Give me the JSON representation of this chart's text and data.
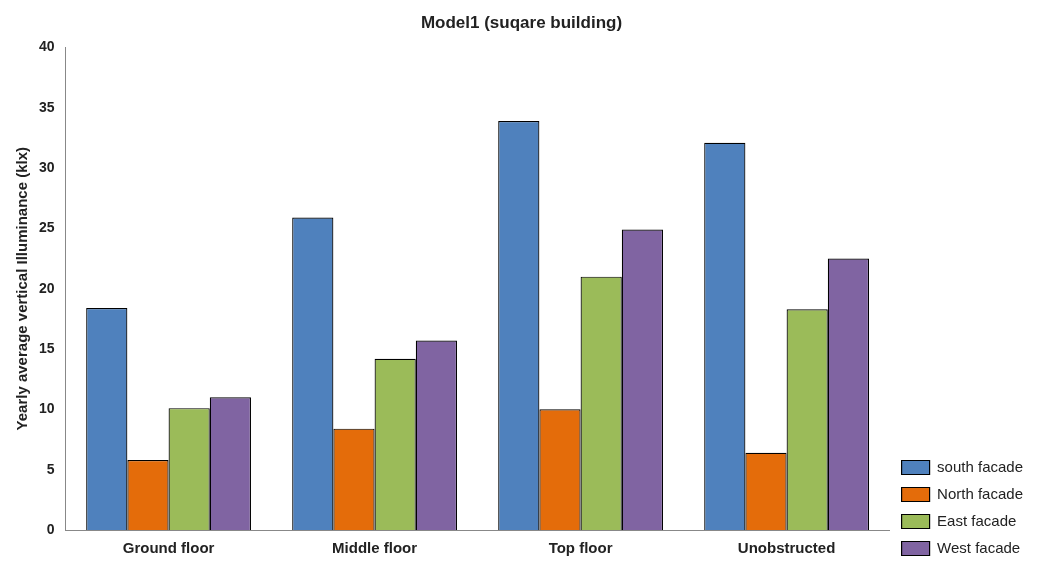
{
  "chart_data": {
    "type": "bar",
    "title": "Model1 (suqare building)",
    "ylabel": "Yearly average vertical Illuminance (klx)",
    "categories": [
      "Ground floor",
      "Middle floor",
      "Top floor",
      "Unobstructed"
    ],
    "series": [
      {
        "name": "south facade",
        "color": "#4f81bd",
        "values": [
          18.4,
          25.9,
          33.9,
          32.1
        ]
      },
      {
        "name": "North facade",
        "color": "#e46c0a",
        "values": [
          5.8,
          8.4,
          10.0,
          6.4
        ]
      },
      {
        "name": "East facade",
        "color": "#9bbb59",
        "values": [
          10.1,
          14.2,
          21.0,
          18.3
        ]
      },
      {
        "name": "West facade",
        "color": "#8064a2",
        "values": [
          11.0,
          15.7,
          24.9,
          22.5
        ]
      }
    ],
    "ylim": [
      0,
      40
    ],
    "yticks": [
      0,
      5,
      10,
      15,
      20,
      25,
      30,
      35,
      40
    ],
    "grid": false,
    "legend": "right"
  }
}
